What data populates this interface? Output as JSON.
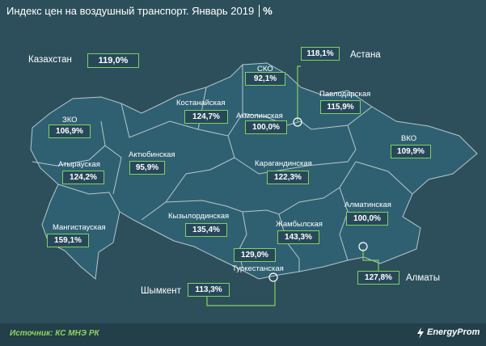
{
  "title": "Индекс цен на воздушный транспорт. Январь 2019",
  "unit": "%",
  "kazakhstan": {
    "label": "Казахстан",
    "value": "119,0%"
  },
  "regions": [
    {
      "key": "sko",
      "name": "СКО",
      "value": "92,1%"
    },
    {
      "key": "kostanay",
      "name": "Костанайская",
      "value": "124,7%"
    },
    {
      "key": "akmola",
      "name": "Акмолинская",
      "value": "100,0%"
    },
    {
      "key": "pavlodar",
      "name": "Павлодарская",
      "value": "115,9%"
    },
    {
      "key": "zko",
      "name": "ЗКО",
      "value": "106,9%"
    },
    {
      "key": "aktobe",
      "name": "Актюбинская",
      "value": "95,9%"
    },
    {
      "key": "atyrau",
      "name": "Атырауская",
      "value": "124,2%"
    },
    {
      "key": "karaganda",
      "name": "Карагандинская",
      "value": "122,3%"
    },
    {
      "key": "vko",
      "name": "ВКО",
      "value": "109,9%"
    },
    {
      "key": "mangistau",
      "name": "Мангистауская",
      "value": "159,1%"
    },
    {
      "key": "kyzylorda",
      "name": "Кызылординская",
      "value": "135,4%"
    },
    {
      "key": "zhambyl",
      "name": "Жамбылская",
      "value": "143,3%"
    },
    {
      "key": "almaty_reg",
      "name": "Алматинская",
      "value": "100,0%"
    },
    {
      "key": "turkestan",
      "name": "Туркестанская",
      "value": "129,0%"
    }
  ],
  "cities": [
    {
      "key": "astana",
      "name": "Астана",
      "value": "118,1%"
    },
    {
      "key": "almaty",
      "name": "Алматы",
      "value": "127,8%"
    },
    {
      "key": "shymkent",
      "name": "Шымкент",
      "value": "113,3%"
    }
  ],
  "source": "Источник: КС МНЭ РК",
  "brand": "EnergyProm",
  "colors": {
    "background": "#2c4f5b",
    "region": "#2f6072",
    "border": "#b9c6cc",
    "accent": "#7fd35b"
  }
}
